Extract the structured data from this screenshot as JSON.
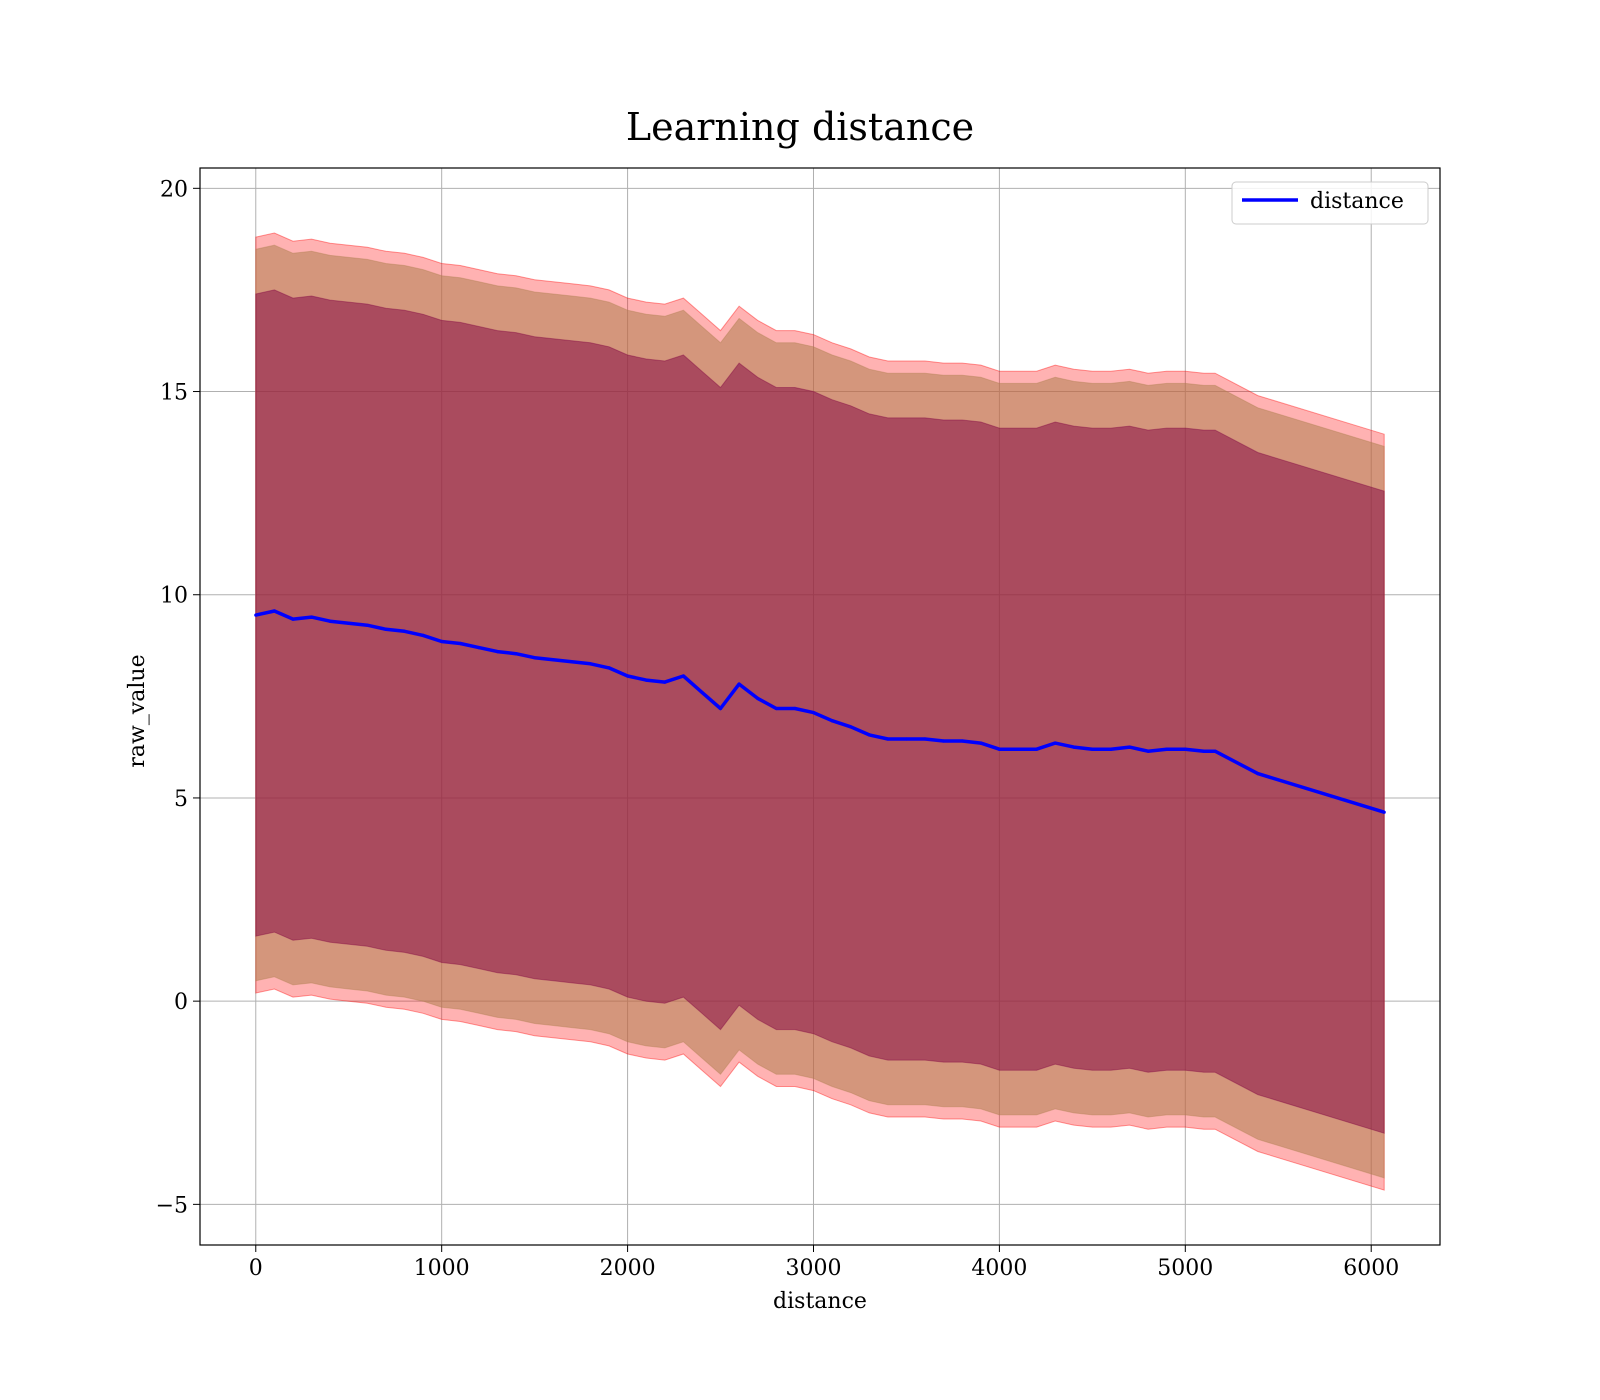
{
  "chart_data": {
    "type": "line",
    "title": "Learning distance",
    "xlabel": "distance",
    "ylabel": "raw_value",
    "xlim": [
      -300,
      6370
    ],
    "ylim": [
      -6,
      20.5
    ],
    "xticks": [
      0,
      1000,
      2000,
      3000,
      4000,
      5000,
      6000
    ],
    "yticks": [
      -5,
      0,
      5,
      10,
      15,
      20
    ],
    "xtick_labels": [
      "0",
      "1000",
      "2000",
      "3000",
      "4000",
      "5000",
      "6000"
    ],
    "ytick_labels": [
      "−5",
      "0",
      "5",
      "10",
      "15",
      "20"
    ],
    "grid": true,
    "legend": {
      "placement": "top-right",
      "entries": [
        "distance"
      ]
    },
    "colors": {
      "line": "#0000ff",
      "band_outer": "#ff0000",
      "band_middle": "#b08050",
      "band_inner": "#800040",
      "grid": "#b0b0b0"
    },
    "series": [
      {
        "name": "distance",
        "x": [
          0,
          100,
          200,
          300,
          400,
          500,
          600,
          700,
          800,
          900,
          1000,
          1100,
          1200,
          1300,
          1400,
          1500,
          1600,
          1700,
          1800,
          1900,
          2000,
          2100,
          2200,
          2300,
          2400,
          2500,
          2600,
          2700,
          2800,
          2900,
          3000,
          3100,
          3200,
          3300,
          3400,
          3500,
          3600,
          3700,
          3800,
          3900,
          4000,
          4100,
          4200,
          4300,
          4400,
          4500,
          4600,
          4700,
          4800,
          4900,
          5000,
          5100,
          5160,
          5390,
          6070
        ],
        "values": [
          9.5,
          9.6,
          9.4,
          9.45,
          9.35,
          9.3,
          9.25,
          9.15,
          9.1,
          9.0,
          8.85,
          8.8,
          8.7,
          8.6,
          8.55,
          8.45,
          8.4,
          8.35,
          8.3,
          8.2,
          8.0,
          7.9,
          7.85,
          8.0,
          7.6,
          7.2,
          7.8,
          7.45,
          7.2,
          7.2,
          7.1,
          6.9,
          6.75,
          6.55,
          6.45,
          6.45,
          6.45,
          6.4,
          6.4,
          6.35,
          6.2,
          6.2,
          6.2,
          6.35,
          6.25,
          6.2,
          6.2,
          6.25,
          6.15,
          6.2,
          6.2,
          6.15,
          6.15,
          5.6,
          4.65
        ]
      }
    ],
    "bands": [
      {
        "sigma": 3,
        "half_width": 9.3
      },
      {
        "sigma": 2,
        "half_width": 9.0
      },
      {
        "sigma": 1,
        "half_width": 7.9
      }
    ]
  }
}
